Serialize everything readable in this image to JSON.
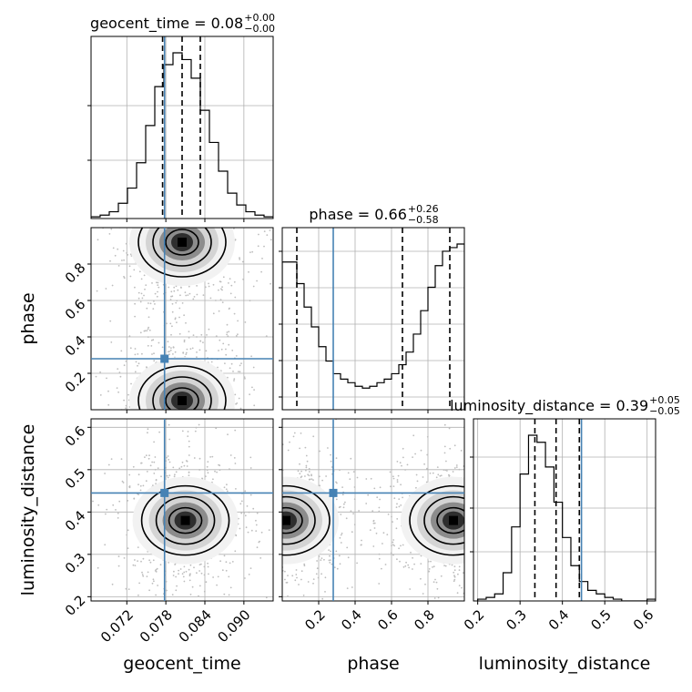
{
  "chart_data": {
    "type": "corner",
    "parameters": [
      {
        "name": "geocent_time",
        "axis_label": "geocent_time",
        "title_prefix": "geocent_time = ",
        "median": "0.08",
        "plus": "+0.00",
        "minus": "−0.00",
        "range": [
          0.0665,
          0.0945
        ],
        "ticks": [
          0.072,
          0.078,
          0.084,
          0.09
        ],
        "tick_labels": [
          "0.072",
          "0.078",
          "0.084",
          "0.090"
        ],
        "quantiles": [
          0.0775,
          0.0805,
          0.0833
        ],
        "truth": 0.0778,
        "histogram": {
          "edges_start": 0.0665,
          "bin_width": 0.0014,
          "counts": [
            1,
            2,
            4,
            9,
            18,
            33,
            55,
            78,
            91,
            98,
            94,
            83,
            64,
            45,
            28,
            15,
            8,
            4,
            2,
            1
          ]
        }
      },
      {
        "name": "phase",
        "axis_label": "phase",
        "title_prefix": "phase = ",
        "median": "0.66",
        "plus": "+0.26",
        "minus": "−0.58",
        "range": [
          0.0,
          1.0
        ],
        "ticks": [
          0.2,
          0.4,
          0.6,
          0.8
        ],
        "tick_labels": [
          "0.2",
          "0.4",
          "0.6",
          "0.8"
        ],
        "quantiles": [
          0.08,
          0.66,
          0.92
        ],
        "truth": 0.28,
        "histogram": {
          "edges_start": 0.0,
          "bin_width": 0.04,
          "counts": [
            82,
            82,
            70,
            57,
            46,
            35,
            27,
            20,
            17,
            15,
            13,
            12,
            13,
            15,
            17,
            20,
            25,
            32,
            42,
            55,
            68,
            80,
            88,
            90,
            92
          ]
        }
      },
      {
        "name": "luminosity_distance",
        "axis_label": "luminosity_distance",
        "title_prefix": "luminosity_distance = ",
        "median": "0.39",
        "plus": "+0.05",
        "minus": "−0.05",
        "range": [
          0.19,
          0.62
        ],
        "ticks": [
          0.2,
          0.3,
          0.4,
          0.5,
          0.6
        ],
        "tick_labels": [
          "0.2",
          "0.3",
          "0.4",
          "0.5",
          "0.6"
        ],
        "quantiles": [
          0.335,
          0.385,
          0.44
        ],
        "truth": 0.445,
        "histogram": {
          "edges_start": 0.2,
          "bin_width": 0.02,
          "counts": [
            1,
            2,
            4,
            16,
            42,
            72,
            94,
            90,
            76,
            56,
            36,
            20,
            11,
            6,
            4,
            2,
            1,
            0,
            0,
            0,
            1
          ]
        }
      }
    ],
    "pairs": [
      {
        "x": "geocent_time",
        "y": "phase",
        "modes": [
          {
            "cx": 0.0805,
            "cy": 0.92
          },
          {
            "cx": 0.0805,
            "cy": 0.05
          }
        ]
      },
      {
        "x": "geocent_time",
        "y": "luminosity_distance",
        "modes": [
          {
            "cx": 0.081,
            "cy": 0.38
          }
        ]
      },
      {
        "x": "phase",
        "y": "luminosity_distance",
        "modes": [
          {
            "cx": 0.02,
            "cy": 0.38
          },
          {
            "cx": 0.94,
            "cy": 0.38
          }
        ]
      }
    ],
    "truth_color": "#4682b4",
    "line_color": "#000000",
    "grid": true
  }
}
